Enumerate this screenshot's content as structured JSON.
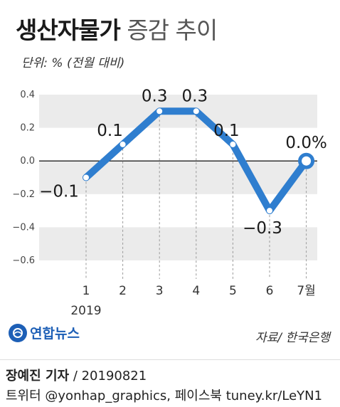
{
  "header": {
    "title_bold": "생산자물가",
    "title_light": "증감 추이",
    "unit": "단위: % (전월 대비)"
  },
  "chart_data": {
    "type": "line",
    "x": [
      "1",
      "2",
      "3",
      "4",
      "5",
      "6",
      "7월"
    ],
    "x_sub": "2019",
    "y": [
      -0.1,
      0.1,
      0.3,
      0.3,
      0.1,
      -0.3,
      0.0
    ],
    "data_labels": [
      "−0.1",
      "0.1",
      "0.3",
      "0.3",
      "0.1",
      "−0.3",
      "0.0%"
    ],
    "y_ticks": [
      "0.4",
      "0.2",
      "0.0",
      "−0.2",
      "−0.4",
      "−0.6"
    ],
    "ylim": [
      -0.6,
      0.4
    ],
    "colors": {
      "line": "#2f7ecf",
      "band": "#ebebeb",
      "zero": "#333333"
    }
  },
  "source": "자료/ 한국은행",
  "logo": "연합뉴스",
  "footer": {
    "reporter": "장예진 기자",
    "date": "/  20190821",
    "twitter": "트위터 @yonhap_graphics, 페이스북 tuney.kr/LeYN1"
  }
}
